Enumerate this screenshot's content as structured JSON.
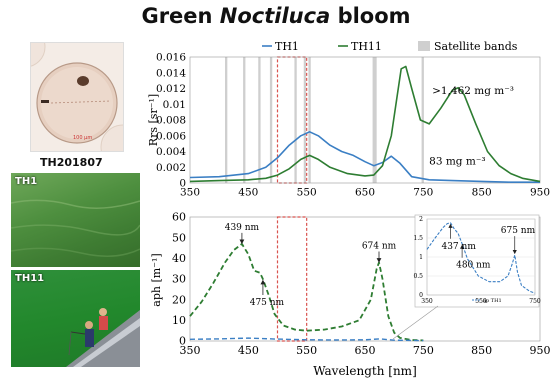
{
  "title": {
    "prefix": "Green ",
    "italic": "Noctiluca",
    "suffix": " bloom"
  },
  "photos": {
    "micro_caption": "TH201807",
    "micro_scale": "100 μm",
    "th1_label": "TH1",
    "th11_label": "TH11"
  },
  "colors": {
    "th1": "#3b7fc4",
    "th11": "#2e7d32",
    "band": "#cfcfcf",
    "highlight": "#d9534f"
  },
  "chart_data": [
    {
      "type": "line",
      "ylabel": "Rrs [sr⁻¹]",
      "xlim": [
        350,
        950
      ],
      "ylim": [
        0,
        0.016
      ],
      "xticks": [
        350,
        450,
        550,
        650,
        750,
        850,
        950
      ],
      "yticks": [
        0,
        0.002,
        0.004,
        0.006,
        0.008,
        0.01,
        0.012,
        0.014,
        0.016
      ],
      "yticklabels": [
        "0",
        "0.002",
        "0.004",
        "0.006",
        "0.008",
        "0.01",
        "0.012",
        "0.014",
        "0.016"
      ],
      "legend": [
        "TH1",
        "TH11",
        "Satellite bands"
      ],
      "satellite_bands": [
        [
          410,
          414
        ],
        [
          441,
          445
        ],
        [
          467,
          471
        ],
        [
          487,
          491
        ],
        [
          529,
          533
        ],
        [
          545,
          549
        ],
        [
          553,
          557
        ],
        [
          663,
          670
        ],
        [
          747,
          751
        ]
      ],
      "highlight_range": [
        500,
        550
      ],
      "series": [
        {
          "name": "TH1",
          "color": "#3b7fc4",
          "x": [
            350,
            400,
            450,
            480,
            500,
            520,
            540,
            555,
            570,
            590,
            610,
            630,
            650,
            665,
            680,
            695,
            710,
            730,
            760,
            800,
            850,
            900,
            950
          ],
          "y": [
            0.0007,
            0.0008,
            0.0012,
            0.002,
            0.0032,
            0.0048,
            0.006,
            0.0065,
            0.006,
            0.0048,
            0.004,
            0.0035,
            0.0027,
            0.0022,
            0.0026,
            0.0034,
            0.0025,
            0.0008,
            0.0004,
            0.0003,
            0.0002,
            0.0001,
            0.0001
          ]
        },
        {
          "name": "TH11",
          "color": "#2e7d32",
          "x": [
            350,
            400,
            450,
            480,
            500,
            520,
            540,
            555,
            570,
            590,
            620,
            650,
            665,
            680,
            695,
            705,
            712,
            720,
            730,
            745,
            760,
            780,
            800,
            810,
            820,
            840,
            860,
            880,
            900,
            920,
            950
          ],
          "y": [
            0.0002,
            0.0003,
            0.0004,
            0.0006,
            0.001,
            0.0018,
            0.003,
            0.0035,
            0.003,
            0.002,
            0.0012,
            0.0009,
            0.001,
            0.0022,
            0.006,
            0.011,
            0.0145,
            0.0148,
            0.012,
            0.008,
            0.0075,
            0.0095,
            0.0118,
            0.0121,
            0.0112,
            0.0075,
            0.004,
            0.0022,
            0.0012,
            0.0006,
            0.0002
          ]
        }
      ],
      "annotations": [
        {
          "text": ">1,462 mg m⁻³",
          "x": 765,
          "y": 0.0118
        },
        {
          "text": "83 mg m⁻³",
          "x": 760,
          "y": 0.0021
        }
      ]
    },
    {
      "type": "line",
      "ylabel": "aph [m⁻¹]",
      "xlabel": "Wavelength [nm]",
      "xlim": [
        350,
        950
      ],
      "ylim": [
        0,
        60
      ],
      "xticks": [
        350,
        450,
        550,
        650,
        750,
        850,
        950
      ],
      "yticks": [
        0,
        10,
        20,
        30,
        40,
        50,
        60
      ],
      "highlight_range": [
        500,
        550
      ],
      "series": [
        {
          "name": "TH11",
          "color": "#2e7d32",
          "dashed": true,
          "x": [
            350,
            370,
            390,
            410,
            425,
            439,
            450,
            460,
            470,
            475,
            485,
            495,
            510,
            530,
            550,
            580,
            610,
            640,
            660,
            670,
            674,
            680,
            690,
            700,
            710,
            730,
            750
          ],
          "y": [
            12,
            19,
            28,
            38,
            44,
            47,
            42,
            34,
            33,
            30,
            22,
            13,
            7.5,
            5.5,
            5,
            5.5,
            7,
            10,
            20,
            35,
            38,
            30,
            12,
            4,
            1.5,
            0.5,
            0.3
          ]
        },
        {
          "name": "TH1",
          "color": "#3b7fc4",
          "dashed": true,
          "x": [
            350,
            400,
            450,
            500,
            550,
            600,
            650,
            675,
            700,
            750
          ],
          "y": [
            0.8,
            1.0,
            1.4,
            0.9,
            0.6,
            0.5,
            0.6,
            1.0,
            0.4,
            0.2
          ]
        }
      ],
      "annotations": [
        {
          "text": "439 nm",
          "x": 439,
          "y": 47
        },
        {
          "text": "475 nm",
          "x": 475,
          "y": 30
        },
        {
          "text": "674 nm",
          "x": 674,
          "y": 38
        }
      ]
    },
    {
      "type": "line",
      "xlim": [
        350,
        750
      ],
      "ylim": [
        0,
        2
      ],
      "xticks": [
        350,
        550,
        750
      ],
      "yticks": [
        0,
        0.5,
        1,
        1.5,
        2
      ],
      "yticklabels": [
        "0",
        "0.5",
        "1",
        "1.5",
        "2"
      ],
      "legend": [
        "ap TH1"
      ],
      "series": [
        {
          "name": "ap TH1",
          "color": "#3b7fc4",
          "dashed": true,
          "x": [
            350,
            380,
            410,
            425,
            437,
            450,
            465,
            480,
            500,
            540,
            580,
            620,
            650,
            665,
            675,
            685,
            700,
            730,
            750
          ],
          "y": [
            1.2,
            1.5,
            1.78,
            1.88,
            1.9,
            1.75,
            1.62,
            1.35,
            0.95,
            0.5,
            0.35,
            0.35,
            0.5,
            0.8,
            1.05,
            0.6,
            0.25,
            0.1,
            0.05
          ]
        }
      ],
      "annotations": [
        {
          "text": "675 nm",
          "x": 675,
          "y": 1.05
        },
        {
          "text": "437 nm",
          "x": 437,
          "y": 1.9
        },
        {
          "text": "480 nm",
          "x": 480,
          "y": 1.35
        }
      ]
    }
  ]
}
